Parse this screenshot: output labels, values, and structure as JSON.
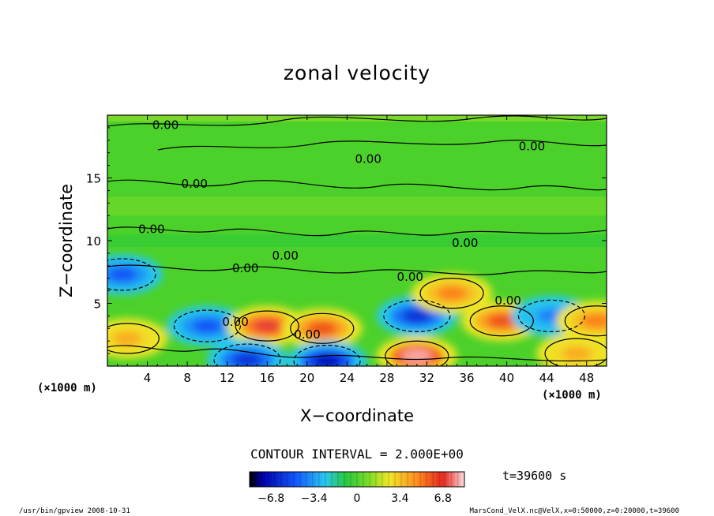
{
  "chart_data": {
    "type": "heatmap",
    "title": "zonal velocity",
    "xlabel": "X−coordinate",
    "ylabel": "Z−coordinate",
    "x_unit_left": "(×1000 m)",
    "x_unit_right": "(×1000 m)",
    "xlim": [
      0,
      50
    ],
    "ylim": [
      0,
      20
    ],
    "x_ticks": [
      4,
      8,
      12,
      16,
      20,
      24,
      28,
      32,
      36,
      40,
      44,
      48
    ],
    "y_ticks": [
      5,
      10,
      15
    ],
    "contour_label": "0.00",
    "contour_interval_text": "CONTOUR INTERVAL = 2.000E+00",
    "colorbar": {
      "range": [
        -8.5,
        8.5
      ],
      "ticks": [
        "−6.8",
        "−3.4",
        "0",
        "3.4",
        "6.8"
      ],
      "tick_values": [
        -6.8,
        -3.4,
        0,
        3.4,
        6.8
      ]
    },
    "time_text": "t=39600 s",
    "footer_left": "/usr/bin/gpview   2008-10-31",
    "footer_right": "MarsCond_VelX.nc@VelX,x=0:50000,z=0:20000,t=39600",
    "features": [
      {
        "x": 1.5,
        "z": 7.3,
        "value": -5
      },
      {
        "x": 10.0,
        "z": 3.2,
        "value": -5
      },
      {
        "x": 16.0,
        "z": 3.2,
        "value": 7
      },
      {
        "x": 14.0,
        "z": 0.5,
        "value": -6
      },
      {
        "x": 21.5,
        "z": 3.0,
        "value": 6
      },
      {
        "x": 22.0,
        "z": 0.4,
        "value": -7
      },
      {
        "x": 31.0,
        "z": 0.8,
        "value": 8
      },
      {
        "x": 31.0,
        "z": 4.0,
        "value": -6
      },
      {
        "x": 34.5,
        "z": 5.8,
        "value": 5
      },
      {
        "x": 39.5,
        "z": 3.6,
        "value": 6
      },
      {
        "x": 44.5,
        "z": 4.0,
        "value": -4
      },
      {
        "x": 49.0,
        "z": 3.6,
        "value": 5
      },
      {
        "x": 2.0,
        "z": 2.2,
        "value": 4
      },
      {
        "x": 47.0,
        "z": 1.0,
        "value": 4
      }
    ]
  }
}
